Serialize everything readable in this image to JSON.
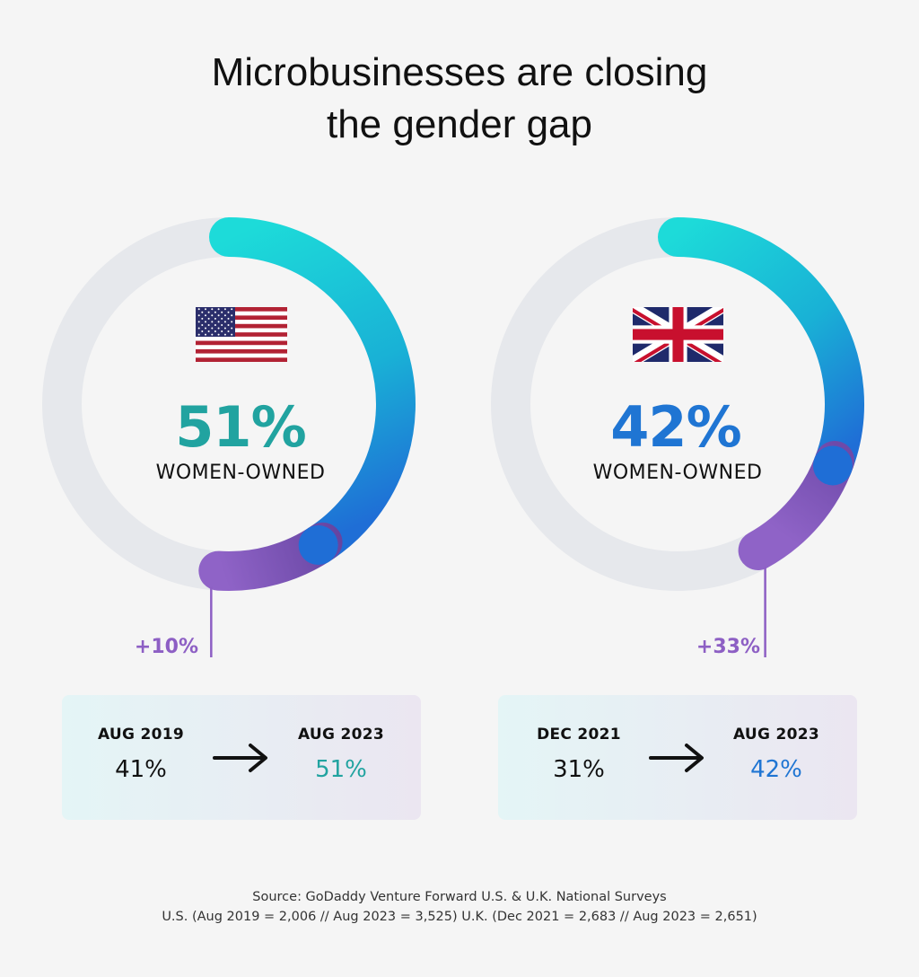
{
  "title": {
    "line1": "Microbusinesses are closing",
    "line2": "the gender gap"
  },
  "colors": {
    "teal": "#21a3a0",
    "blue": "#1f75d3",
    "purple": "#8d5fc4",
    "track": "#e6e8ec"
  },
  "chart_data": [
    {
      "type": "donut",
      "country": "U.S.",
      "flag_icon": "us-flag-icon",
      "value": 51,
      "center_label": "51%",
      "caption": "WOMEN-OWNED",
      "previous_value": 41,
      "change_label": "+10%",
      "from": {
        "date": "AUG 2019",
        "value": "41%"
      },
      "to": {
        "date": "AUG 2023",
        "value": "51%"
      },
      "value_color": "#21a3a0"
    },
    {
      "type": "donut",
      "country": "U.K.",
      "flag_icon": "uk-flag-icon",
      "value": 42,
      "center_label": "42%",
      "caption": "WOMEN-OWNED",
      "previous_value": 31,
      "change_label": "+33%",
      "from": {
        "date": "DEC 2021",
        "value": "31%"
      },
      "to": {
        "date": "AUG 2023",
        "value": "42%"
      },
      "value_color": "#1f75d3"
    }
  ],
  "source": {
    "line1": "Source: GoDaddy Venture Forward U.S. & U.K. National Surveys",
    "line2": "U.S. (Aug 2019 = 2,006 // Aug 2023 = 3,525) U.K. (Dec 2021 = 2,683 // Aug 2023 = 2,651)"
  }
}
